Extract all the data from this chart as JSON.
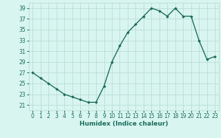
{
  "x": [
    0,
    1,
    2,
    3,
    4,
    5,
    6,
    7,
    8,
    9,
    10,
    11,
    12,
    13,
    14,
    15,
    16,
    17,
    18,
    19,
    20,
    21,
    22,
    23
  ],
  "y": [
    27,
    26,
    25,
    24,
    23,
    22.5,
    22,
    21.5,
    21.5,
    24.5,
    29,
    32,
    34.5,
    36,
    37.5,
    39,
    38.5,
    37.5,
    39,
    37.5,
    37.5,
    33,
    29.5,
    30
  ],
  "line_color": "#1a6b5a",
  "marker": "D",
  "marker_size": 1.8,
  "bg_color": "#d8f5f0",
  "grid_color": "#b5d8d0",
  "xlabel": "Humidex (Indice chaleur)",
  "ylim": [
    20,
    40
  ],
  "xlim": [
    -0.5,
    23.5
  ],
  "yticks": [
    21,
    23,
    25,
    27,
    29,
    31,
    33,
    35,
    37,
    39
  ],
  "xticks": [
    0,
    1,
    2,
    3,
    4,
    5,
    6,
    7,
    8,
    9,
    10,
    11,
    12,
    13,
    14,
    15,
    16,
    17,
    18,
    19,
    20,
    21,
    22,
    23
  ],
  "xlabel_fontsize": 6.5,
  "tick_fontsize": 5.5,
  "linewidth": 1.0
}
